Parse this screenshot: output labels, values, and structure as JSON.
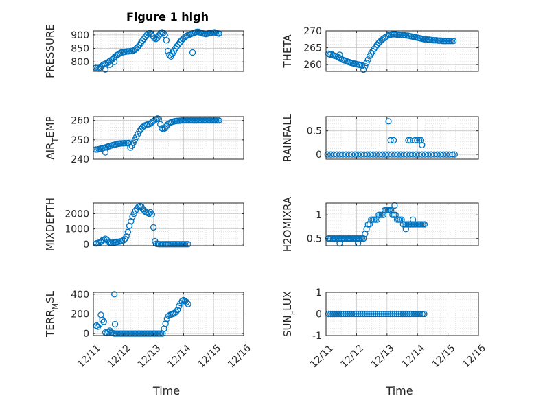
{
  "figure_title": "Figure 1 high",
  "x_axis_label": "Time",
  "x_tick_labels": [
    "12/11",
    "12/12",
    "12/13",
    "12/14",
    "12/15",
    "12/16"
  ],
  "colors": {
    "marker": "#0072BD",
    "axis": "#262626",
    "grid": "#c8c8c8"
  },
  "chart_data": [
    {
      "type": "scatter",
      "title": "Figure 1 high",
      "ylabel": "PRESSURE",
      "xlabel": "",
      "grid": true,
      "xlim": [
        0,
        5
      ],
      "ylim": [
        765,
        915
      ],
      "yticks": [
        800,
        850,
        900
      ],
      "ytick_labels": [
        "800",
        "850",
        "900"
      ],
      "x": [
        0.08,
        0.13,
        0.18,
        0.23,
        0.28,
        0.33,
        0.38,
        0.43,
        0.48,
        0.53,
        0.58,
        0.63,
        0.68,
        0.73,
        0.78,
        0.83,
        0.88,
        0.93,
        0.98,
        1.03,
        1.08,
        1.13,
        1.18,
        1.23,
        1.28,
        1.33,
        1.38,
        1.43,
        1.48,
        1.53,
        1.58,
        1.63,
        1.68,
        1.73,
        1.78,
        1.83,
        1.88,
        1.93,
        1.98,
        2.03,
        2.08,
        2.13,
        2.18,
        2.23,
        2.28,
        2.33,
        2.38,
        2.43,
        2.48,
        2.53,
        2.58,
        2.63,
        2.68,
        2.73,
        2.78,
        2.83,
        2.88,
        2.93,
        2.98,
        3.03,
        3.08,
        3.13,
        3.18,
        3.23,
        3.28,
        3.33,
        3.38,
        3.43,
        3.48,
        3.53,
        3.58,
        3.63,
        3.68,
        3.73,
        3.78,
        3.83,
        3.88,
        3.93,
        3.98,
        4.03,
        4.08,
        4.13,
        4.18,
        0.4,
        0.55,
        0.7,
        3.3
      ],
      "y": [
        778,
        777,
        775,
        780,
        785,
        790,
        793,
        795,
        797,
        802,
        806,
        810,
        815,
        820,
        825,
        828,
        832,
        835,
        836,
        837,
        838,
        839,
        839,
        840,
        841,
        842,
        845,
        850,
        855,
        862,
        870,
        878,
        885,
        893,
        900,
        905,
        908,
        903,
        895,
        888,
        885,
        890,
        898,
        905,
        910,
        908,
        900,
        880,
        840,
        825,
        820,
        830,
        840,
        850,
        858,
        865,
        872,
        880,
        885,
        890,
        895,
        898,
        900,
        902,
        905,
        907,
        909,
        911,
        912,
        910,
        908,
        906,
        905,
        903,
        904,
        906,
        907,
        908,
        909,
        910,
        908,
        906,
        905,
        772,
        790,
        800,
        835
      ]
    },
    {
      "type": "scatter",
      "ylabel": "THETA",
      "xlabel": "",
      "grid": true,
      "xlim": [
        0,
        5
      ],
      "ylim": [
        258,
        270
      ],
      "yticks": [
        260,
        265,
        270
      ],
      "ytick_labels": [
        "260",
        "265",
        "270"
      ],
      "x": [
        0.08,
        0.13,
        0.18,
        0.23,
        0.28,
        0.33,
        0.38,
        0.43,
        0.48,
        0.53,
        0.58,
        0.63,
        0.68,
        0.73,
        0.78,
        0.83,
        0.88,
        0.93,
        0.98,
        1.03,
        1.08,
        1.13,
        1.18,
        1.23,
        1.28,
        1.33,
        1.38,
        1.43,
        1.48,
        1.53,
        1.58,
        1.63,
        1.68,
        1.73,
        1.78,
        1.83,
        1.88,
        1.93,
        1.98,
        2.03,
        2.08,
        2.13,
        2.18,
        2.23,
        2.28,
        2.33,
        2.38,
        2.43,
        2.48,
        2.53,
        2.58,
        2.63,
        2.68,
        2.73,
        2.78,
        2.83,
        2.88,
        2.93,
        2.98,
        3.03,
        3.08,
        3.13,
        3.18,
        3.23,
        3.28,
        3.33,
        3.38,
        3.43,
        3.48,
        3.53,
        3.58,
        3.63,
        3.68,
        3.73,
        3.78,
        3.83,
        3.88,
        3.93,
        3.98,
        4.03,
        4.08,
        4.13,
        4.18,
        0.45
      ],
      "y": [
        263.2,
        263.0,
        263.1,
        262.8,
        262.6,
        262.5,
        262.3,
        262.0,
        261.8,
        261.5,
        261.3,
        261.2,
        261.0,
        260.8,
        260.7,
        260.5,
        260.4,
        260.3,
        260.2,
        260.1,
        260.0,
        259.9,
        259.8,
        258.5,
        259.5,
        260.5,
        261.5,
        262.5,
        263.3,
        264.0,
        264.7,
        265.3,
        265.9,
        266.4,
        266.9,
        267.3,
        267.7,
        268.0,
        268.3,
        268.6,
        268.8,
        268.9,
        269.0,
        269.0,
        269.0,
        268.9,
        268.9,
        268.8,
        268.8,
        268.7,
        268.7,
        268.6,
        268.6,
        268.5,
        268.4,
        268.3,
        268.2,
        268.1,
        268.0,
        267.9,
        267.8,
        267.7,
        267.6,
        267.5,
        267.5,
        267.4,
        267.4,
        267.3,
        267.3,
        267.2,
        267.2,
        267.2,
        267.1,
        267.1,
        267.1,
        267.0,
        267.0,
        267.0,
        267.0,
        267.0,
        267.0,
        267.0,
        267.0,
        262.9
      ]
    },
    {
      "type": "scatter",
      "ylabel": "AIR_TEMP",
      "ylabel_main": "AIR",
      "ylabel_sub": "T",
      "ylabel_tail": "EMP",
      "xlabel": "",
      "grid": true,
      "xlim": [
        0,
        5
      ],
      "ylim": [
        240,
        262
      ],
      "yticks": [
        240,
        250,
        260
      ],
      "ytick_labels": [
        "240",
        "250",
        "260"
      ],
      "x": [
        0.08,
        0.13,
        0.18,
        0.23,
        0.28,
        0.33,
        0.38,
        0.43,
        0.48,
        0.53,
        0.58,
        0.63,
        0.68,
        0.73,
        0.78,
        0.83,
        0.88,
        0.93,
        0.98,
        1.03,
        1.08,
        1.13,
        1.18,
        1.23,
        1.28,
        1.33,
        1.38,
        1.43,
        1.48,
        1.53,
        1.58,
        1.63,
        1.68,
        1.73,
        1.78,
        1.83,
        1.88,
        1.93,
        1.98,
        2.03,
        2.08,
        2.13,
        2.18,
        2.23,
        2.28,
        2.33,
        2.38,
        2.43,
        2.48,
        2.53,
        2.58,
        2.63,
        2.68,
        2.73,
        2.78,
        2.83,
        2.88,
        2.93,
        2.98,
        3.03,
        3.08,
        3.13,
        3.18,
        3.23,
        3.28,
        3.33,
        3.38,
        3.43,
        3.48,
        3.53,
        3.58,
        3.63,
        3.68,
        3.73,
        3.78,
        3.83,
        3.88,
        3.93,
        3.98,
        4.03,
        4.08,
        4.13,
        4.18,
        0.4
      ],
      "y": [
        245.0,
        245.0,
        245.2,
        245.4,
        245.5,
        245.8,
        246.0,
        246.2,
        246.5,
        246.7,
        247.0,
        247.2,
        247.4,
        247.6,
        247.8,
        248.0,
        248.1,
        248.2,
        248.2,
        248.3,
        248.3,
        248.3,
        248.4,
        246.0,
        247.0,
        248.5,
        250.0,
        251.5,
        253.0,
        254.5,
        255.5,
        256.5,
        257.0,
        257.5,
        257.8,
        258.0,
        258.3,
        258.8,
        259.5,
        260.0,
        260.5,
        261.0,
        260.8,
        258.0,
        256.0,
        255.5,
        256.0,
        257.0,
        258.0,
        258.5,
        259.0,
        259.3,
        259.5,
        259.7,
        259.8,
        259.8,
        259.9,
        260.0,
        260.0,
        260.0,
        260.0,
        260.0,
        260.0,
        260.0,
        260.0,
        260.0,
        260.0,
        260.0,
        260.0,
        260.0,
        260.0,
        260.0,
        260.0,
        260.0,
        260.0,
        260.0,
        260.0,
        260.0,
        260.0,
        260.0,
        260.0,
        260.0,
        260.0,
        243.5
      ]
    },
    {
      "type": "scatter",
      "ylabel": "RAINFALL",
      "xlabel": "",
      "grid": true,
      "xlim": [
        0,
        5
      ],
      "ylim": [
        -0.1,
        0.8
      ],
      "yticks": [
        0,
        0.5
      ],
      "ytick_labels": [
        "0",
        "0.5"
      ],
      "x": [
        0.05,
        0.15,
        0.25,
        0.35,
        0.45,
        0.55,
        0.65,
        0.75,
        0.85,
        0.95,
        1.05,
        1.15,
        1.25,
        1.35,
        1.45,
        1.55,
        1.65,
        1.75,
        1.85,
        1.95,
        2.05,
        2.15,
        2.25,
        2.35,
        2.45,
        2.55,
        2.65,
        2.75,
        2.85,
        2.95,
        3.05,
        3.15,
        3.25,
        3.35,
        3.45,
        3.55,
        3.65,
        3.75,
        3.85,
        3.95,
        4.05,
        4.15,
        4.22,
        2.05,
        2.12,
        2.22,
        2.7,
        2.76,
        2.92,
        2.99,
        3.06,
        3.12,
        3.15
      ],
      "y": [
        0,
        0,
        0,
        0,
        0,
        0,
        0,
        0,
        0,
        0,
        0,
        0,
        0,
        0,
        0,
        0,
        0,
        0,
        0,
        0,
        0,
        0,
        0,
        0,
        0,
        0,
        0,
        0,
        0,
        0,
        0,
        0,
        0,
        0,
        0,
        0,
        0,
        0,
        0,
        0,
        0,
        0,
        0,
        0.7,
        0.3,
        0.3,
        0.3,
        0.3,
        0.3,
        0.3,
        0.3,
        0.3,
        0.2
      ]
    },
    {
      "type": "scatter",
      "ylabel": "MIXDEPTH",
      "xlabel": "",
      "grid": true,
      "xlim": [
        0,
        5
      ],
      "ylim": [
        -100,
        2700
      ],
      "yticks": [
        0,
        1000,
        2000
      ],
      "ytick_labels": [
        "0",
        "1000",
        "2000"
      ],
      "x": [
        0.1,
        0.15,
        0.2,
        0.25,
        0.3,
        0.35,
        0.4,
        0.45,
        0.5,
        0.55,
        0.6,
        0.65,
        0.7,
        0.75,
        0.8,
        0.85,
        0.9,
        0.95,
        1.0,
        1.05,
        1.1,
        1.15,
        1.2,
        1.25,
        1.3,
        1.35,
        1.4,
        1.45,
        1.5,
        1.55,
        1.6,
        1.65,
        1.7,
        1.75,
        1.8,
        1.85,
        1.9,
        1.95,
        2.0,
        2.05,
        2.1,
        2.15,
        2.2,
        2.25,
        2.3,
        2.33,
        2.38,
        2.42,
        2.46,
        2.5,
        2.55,
        2.6,
        2.65,
        2.7,
        2.75,
        2.8,
        2.85,
        2.9,
        2.95,
        3.0,
        3.05,
        3.1,
        3.15
      ],
      "y": [
        50,
        80,
        100,
        150,
        250,
        300,
        350,
        280,
        150,
        100,
        80,
        100,
        120,
        140,
        150,
        160,
        180,
        200,
        250,
        350,
        500,
        800,
        1200,
        1500,
        1800,
        2000,
        2200,
        2350,
        2450,
        2500,
        2450,
        2300,
        2200,
        2100,
        2050,
        2000,
        2100,
        1950,
        1100,
        200,
        30,
        10,
        0,
        0,
        0,
        0,
        0,
        0,
        0,
        0,
        0,
        0,
        0,
        0,
        0,
        0,
        0,
        0,
        0,
        0,
        0,
        0,
        0
      ]
    },
    {
      "type": "scatter",
      "ylabel": "H2OMIXRA",
      "xlabel": "",
      "grid": true,
      "xlim": [
        0,
        5
      ],
      "ylim": [
        0.35,
        1.25
      ],
      "yticks": [
        0.5,
        1
      ],
      "ytick_labels": [
        "0.5",
        "1"
      ],
      "x": [
        0.08,
        0.13,
        0.18,
        0.23,
        0.28,
        0.33,
        0.38,
        0.43,
        0.48,
        0.53,
        0.58,
        0.63,
        0.68,
        0.73,
        0.78,
        0.83,
        0.88,
        0.93,
        0.98,
        1.03,
        1.08,
        1.13,
        1.18,
        1.23,
        1.28,
        1.33,
        1.38,
        1.43,
        1.48,
        1.53,
        1.58,
        1.63,
        1.68,
        1.73,
        1.78,
        1.83,
        1.88,
        1.93,
        1.98,
        2.03,
        2.08,
        2.13,
        2.18,
        2.23,
        2.28,
        2.33,
        2.38,
        2.43,
        2.48,
        2.53,
        2.58,
        2.63,
        2.68,
        2.73,
        2.78,
        2.83,
        2.88,
        2.93,
        2.98,
        3.03,
        3.08,
        3.13,
        3.18,
        3.23,
        0.45,
        1.05,
        2.25,
        2.62,
        2.85
      ],
      "y": [
        0.5,
        0.5,
        0.5,
        0.5,
        0.5,
        0.5,
        0.5,
        0.5,
        0.5,
        0.5,
        0.5,
        0.5,
        0.5,
        0.5,
        0.5,
        0.5,
        0.5,
        0.5,
        0.5,
        0.5,
        0.5,
        0.5,
        0.5,
        0.5,
        0.6,
        0.7,
        0.8,
        0.8,
        0.9,
        0.9,
        0.9,
        0.9,
        0.9,
        1.0,
        1.0,
        1.0,
        1.0,
        1.1,
        1.1,
        1.1,
        1.1,
        1.1,
        1.0,
        1.0,
        1.0,
        0.9,
        0.9,
        0.9,
        0.9,
        0.8,
        0.8,
        0.8,
        0.8,
        0.8,
        0.8,
        0.8,
        0.8,
        0.8,
        0.8,
        0.8,
        0.8,
        0.8,
        0.8,
        0.8,
        0.4,
        0.4,
        1.2,
        0.7,
        0.9
      ]
    },
    {
      "type": "scatter",
      "ylabel": "TERR_MSL",
      "ylabel_main": "TERR",
      "ylabel_sub": "M",
      "ylabel_tail": "SL",
      "xlabel": "Time",
      "grid": true,
      "xlim": [
        0,
        5
      ],
      "ylim": [
        -20,
        420
      ],
      "yticks": [
        0,
        200,
        400
      ],
      "ytick_labels": [
        "0",
        "200",
        "400"
      ],
      "x_tick_labels": [
        "12/11",
        "12/12",
        "12/13",
        "12/14",
        "12/15",
        "12/16"
      ],
      "x": [
        0.1,
        0.2,
        0.3,
        0.35,
        0.4,
        0.45,
        0.5,
        0.55,
        0.6,
        0.65,
        0.7,
        0.75,
        0.8,
        0.85,
        0.9,
        0.95,
        1.0,
        1.05,
        1.1,
        1.15,
        1.2,
        1.25,
        1.3,
        1.35,
        1.4,
        1.45,
        1.5,
        1.55,
        1.6,
        1.65,
        1.7,
        1.75,
        1.8,
        1.85,
        1.9,
        1.95,
        2.0,
        2.05,
        2.1,
        2.15,
        2.2,
        2.25,
        2.3,
        2.35,
        2.4,
        2.45,
        2.5,
        2.55,
        2.6,
        2.65,
        2.7,
        2.75,
        2.8,
        2.85,
        2.9,
        2.95,
        3.0,
        3.05,
        3.1,
        3.15,
        0.7,
        0.72,
        0.25,
        0.15
      ],
      "y": [
        80,
        90,
        140,
        120,
        10,
        5,
        15,
        30,
        10,
        5,
        0,
        0,
        0,
        0,
        0,
        0,
        0,
        0,
        0,
        0,
        0,
        0,
        0,
        0,
        0,
        0,
        0,
        0,
        0,
        0,
        0,
        0,
        0,
        0,
        0,
        0,
        0,
        0,
        0,
        0,
        0,
        0,
        0,
        50,
        100,
        150,
        180,
        190,
        195,
        200,
        210,
        220,
        240,
        280,
        310,
        330,
        340,
        330,
        320,
        300,
        400,
        95,
        190,
        70
      ]
    },
    {
      "type": "scatter",
      "ylabel": "SUN_FLUX",
      "ylabel_main": "SUN",
      "ylabel_sub": "F",
      "ylabel_tail": "LUX",
      "xlabel": "Time",
      "grid": true,
      "xlim": [
        0,
        5
      ],
      "ylim": [
        -1,
        1
      ],
      "yticks": [
        -1,
        0,
        1
      ],
      "ytick_labels": [
        "-1",
        "0",
        "1"
      ],
      "x_tick_labels": [
        "12/11",
        "12/12",
        "12/13",
        "12/14",
        "12/15",
        "12/16"
      ],
      "x": [
        0.08,
        0.15,
        0.22,
        0.29,
        0.36,
        0.43,
        0.5,
        0.57,
        0.64,
        0.71,
        0.78,
        0.85,
        0.92,
        0.99,
        1.06,
        1.13,
        1.2,
        1.27,
        1.34,
        1.41,
        1.48,
        1.55,
        1.62,
        1.69,
        1.76,
        1.83,
        1.9,
        1.97,
        2.04,
        2.11,
        2.18,
        2.25,
        2.32,
        2.39,
        2.46,
        2.53,
        2.6,
        2.67,
        2.74,
        2.81,
        2.88,
        2.95,
        3.02,
        3.09,
        3.16,
        3.22
      ],
      "y": [
        0,
        0,
        0,
        0,
        0,
        0,
        0,
        0,
        0,
        0,
        0,
        0,
        0,
        0,
        0,
        0,
        0,
        0,
        0,
        0,
        0,
        0,
        0,
        0,
        0,
        0,
        0,
        0,
        0,
        0,
        0,
        0,
        0,
        0,
        0,
        0,
        0,
        0,
        0,
        0,
        0,
        0,
        0,
        0,
        0,
        0
      ]
    }
  ]
}
